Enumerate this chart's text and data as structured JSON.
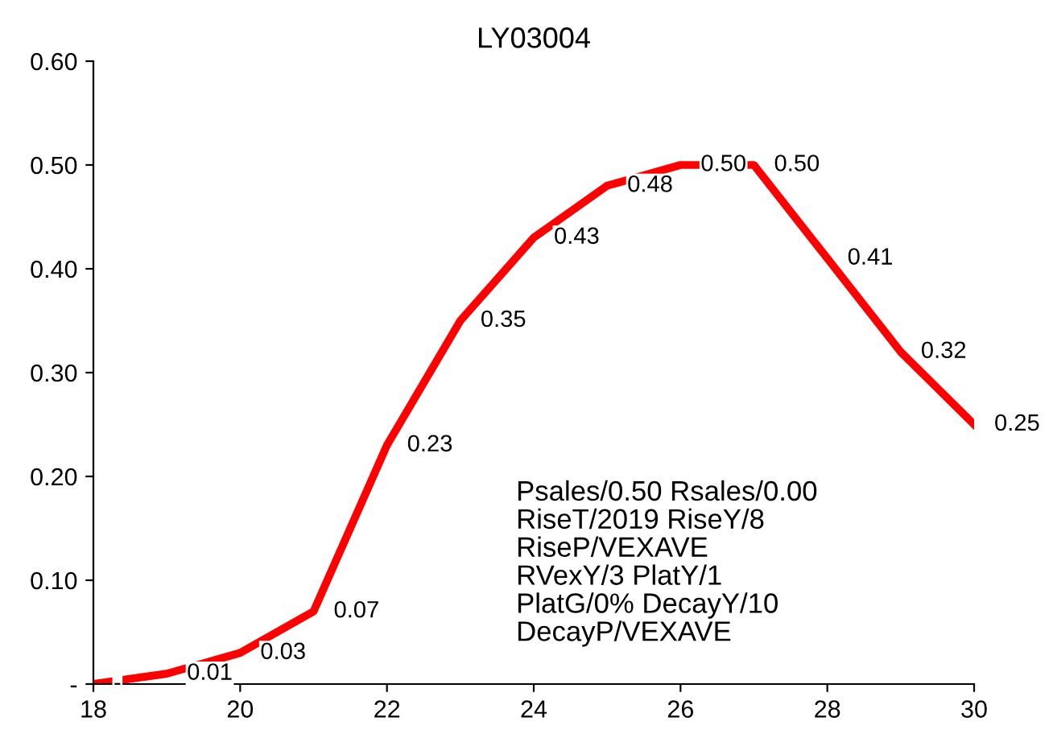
{
  "chart_data": {
    "type": "line",
    "title": "LY03004",
    "x": [
      18,
      19,
      20,
      21,
      22,
      23,
      24,
      25,
      26,
      27,
      28,
      29,
      30
    ],
    "series": [
      {
        "color": "#ff0000",
        "values": [
          0.0,
          0.01,
          0.03,
          0.07,
          0.23,
          0.35,
          0.43,
          0.48,
          0.5,
          0.5,
          0.41,
          0.32,
          0.25
        ],
        "value_labels": [
          "-",
          "0.01",
          "0.03",
          "0.07",
          "0.23",
          "0.35",
          "0.43",
          "0.48",
          "0.50",
          "0.50",
          "0.41",
          "0.32",
          "0.25"
        ]
      }
    ],
    "xlim": [
      18,
      30
    ],
    "xticks": [
      18,
      20,
      22,
      24,
      26,
      28,
      30
    ],
    "ylim": [
      0,
      0.6
    ],
    "yticks": [
      {
        "value": 0,
        "label": "-"
      },
      {
        "value": 0.1,
        "label": "0.10"
      },
      {
        "value": 0.2,
        "label": "0.20"
      },
      {
        "value": 0.3,
        "label": "0.30"
      },
      {
        "value": 0.4,
        "label": "0.40"
      },
      {
        "value": 0.5,
        "label": "0.50"
      },
      {
        "value": 0.6,
        "label": "0.60"
      }
    ],
    "grid": false,
    "legend": false,
    "marker": "none",
    "line_style": "solid",
    "annotations": [
      "Psales/0.50 Rsales/0.00\nRiseT/2019 RiseY/8\nRiseP/VEXAVE\nRVexY/3 PlatY/1\nPlatG/0% DecayY/10\nDecayP/VEXAVE"
    ]
  }
}
